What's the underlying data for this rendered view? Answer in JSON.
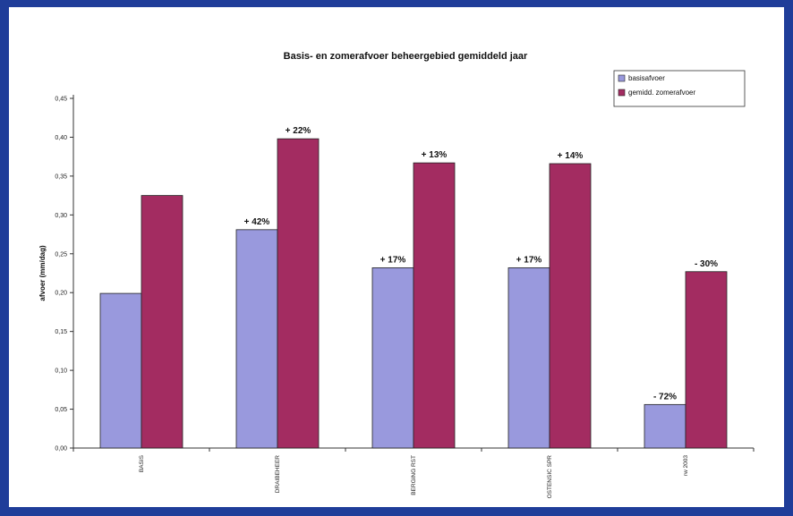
{
  "chart_data": {
    "type": "bar",
    "title": "Basis- en zomerafvoer beheergebied gemiddeld jaar",
    "ylabel": "afvoer (mm/dag)",
    "xlabel": "",
    "ylim": [
      0,
      0.45
    ],
    "ytick_values": [
      0,
      0.05,
      0.1,
      0.15,
      0.2,
      0.25,
      0.3,
      0.35,
      0.4,
      0.45
    ],
    "ytick_labels": [
      "0,00",
      "0,05",
      "0,10",
      "0,15",
      "0,20",
      "0,25",
      "0,30",
      "0,35",
      "0,40",
      "0,45"
    ],
    "categories": [
      "BASIS",
      "DRAIBEHEER",
      "BERGING RST",
      "OSTENSIC SPR",
      "rw 2003"
    ],
    "series": [
      {
        "name": "basisafvoer",
        "color": "#9999dd",
        "values": [
          0.199,
          0.281,
          0.232,
          0.232,
          0.056
        ],
        "labels": [
          "",
          "+ 42%",
          "+ 17%",
          "+ 17%",
          "- 72%"
        ]
      },
      {
        "name": "gemidd. zomerafvoer",
        "color": "#a32c61",
        "values": [
          0.325,
          0.398,
          0.367,
          0.366,
          0.227
        ],
        "labels": [
          "",
          "+ 22%",
          "+ 13%",
          "+ 14%",
          "- 30%"
        ]
      }
    ],
    "legend_position": "top-right",
    "grid": false
  }
}
